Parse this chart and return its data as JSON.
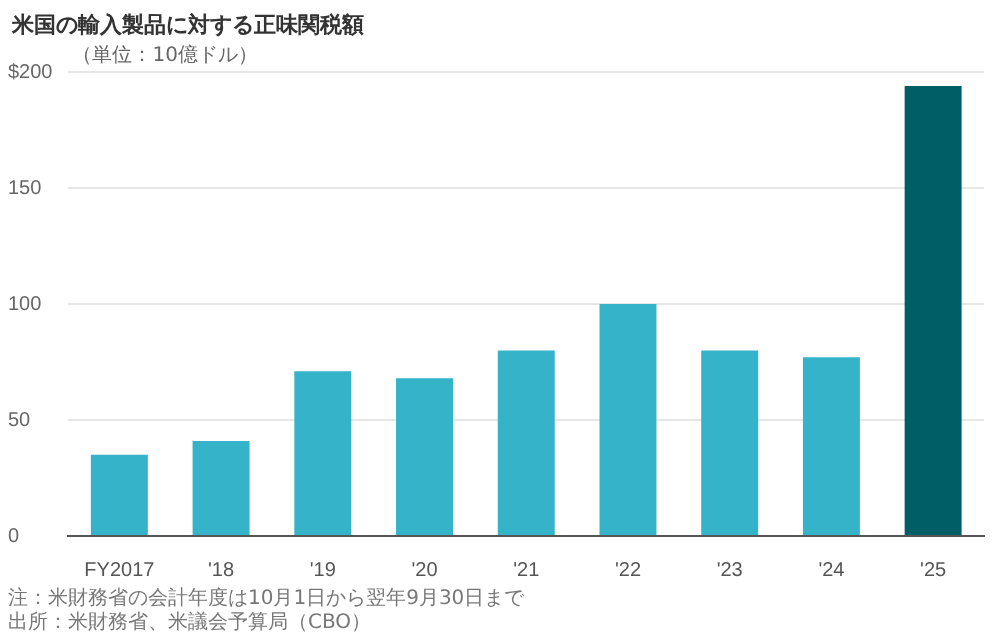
{
  "chart_data": {
    "type": "bar",
    "title": "米国の輸入製品に対する正味関税額",
    "ylabel": "（単位：10億ドル）",
    "categories": [
      "FY2017",
      "'18",
      "'19",
      "'20",
      "'21",
      "'22",
      "'23",
      "'24",
      "'25"
    ],
    "values": [
      35,
      41,
      71,
      68,
      80,
      100,
      80,
      77,
      194
    ],
    "colors": [
      "#35b3c8",
      "#35b3c8",
      "#35b3c8",
      "#35b3c8",
      "#35b3c8",
      "#35b3c8",
      "#35b3c8",
      "#35b3c8",
      "#005f66"
    ],
    "ylim": [
      0,
      200
    ],
    "yticks": [
      0,
      50,
      100,
      150,
      {
        "value": 200,
        "label": "$200"
      }
    ],
    "grid": "y",
    "annotations": [
      "注：米財務省の会計年度は10月1日から翌年9月30日まで",
      "出所：米財務省、米議会予算局（CBO）"
    ]
  }
}
